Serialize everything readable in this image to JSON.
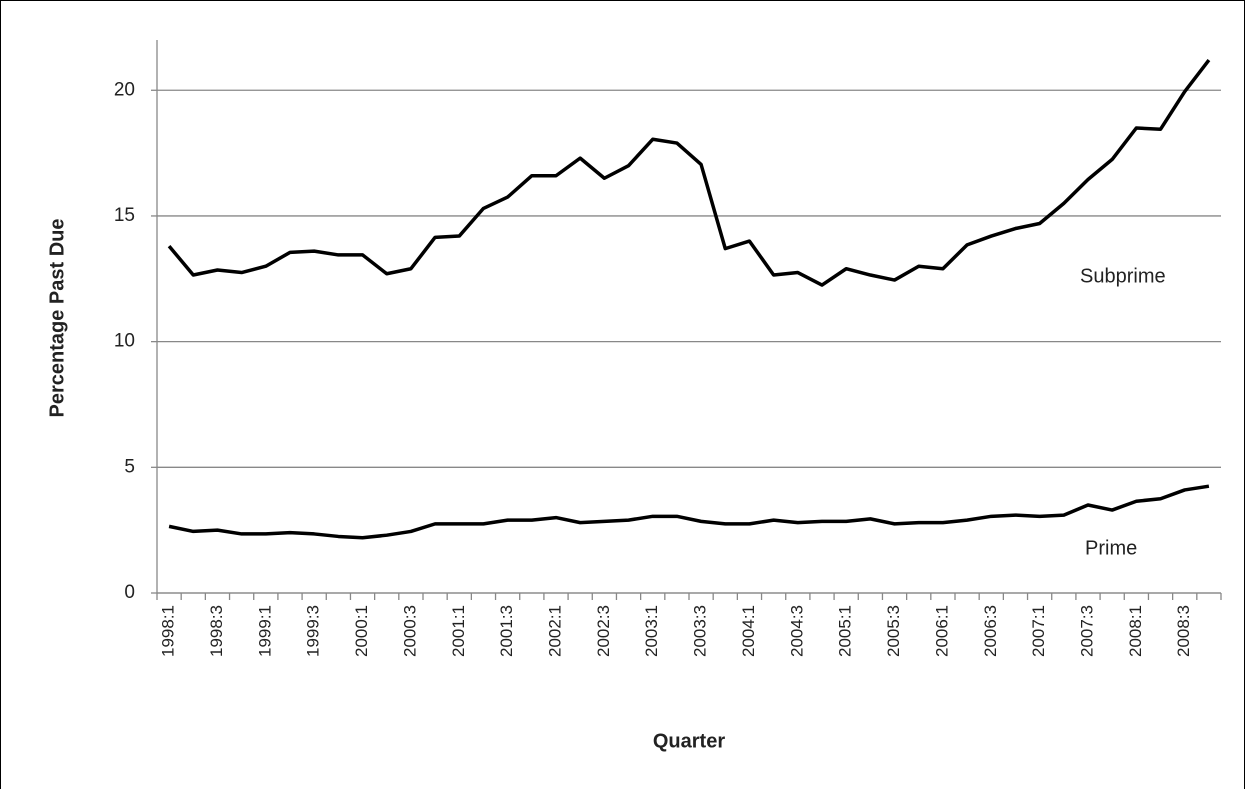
{
  "chart_data": {
    "type": "line",
    "x_label": "Quarter",
    "y_label": "Percentage Past Due",
    "categories": [
      "1998:1",
      null,
      "1998:3",
      null,
      "1999:1",
      null,
      "1999:3",
      null,
      "2000:1",
      null,
      "2000:3",
      null,
      "2001:1",
      null,
      "2001:3",
      null,
      "2002:1",
      null,
      "2002:3",
      null,
      "2003:1",
      null,
      "2003:3",
      null,
      "2004:1",
      null,
      "2004:3",
      null,
      "2005:1",
      null,
      "2005:3",
      null,
      "2006:1",
      null,
      "2006:3",
      null,
      "2007:1",
      null,
      "2007:3",
      null,
      "2008:1",
      null,
      "2008:3",
      null
    ],
    "series": [
      {
        "name": "Subprime",
        "color": "#000000",
        "values": [
          13.8,
          12.65,
          12.85,
          12.75,
          13.0,
          13.55,
          13.6,
          13.45,
          13.45,
          12.7,
          12.9,
          14.15,
          14.2,
          15.3,
          15.75,
          16.6,
          16.6,
          17.3,
          16.5,
          17.0,
          18.05,
          17.9,
          17.05,
          13.7,
          14.0,
          12.65,
          12.75,
          12.25,
          12.9,
          12.65,
          12.45,
          13.0,
          12.9,
          13.85,
          14.2,
          14.5,
          14.7,
          15.5,
          16.45,
          17.25,
          18.5,
          18.45,
          19.95,
          21.2
        ]
      },
      {
        "name": "Prime",
        "color": "#000000",
        "values": [
          2.65,
          2.45,
          2.5,
          2.35,
          2.35,
          2.4,
          2.35,
          2.25,
          2.2,
          2.3,
          2.45,
          2.75,
          2.75,
          2.75,
          2.9,
          2.9,
          3.0,
          2.8,
          2.85,
          2.9,
          3.05,
          3.05,
          2.85,
          2.75,
          2.75,
          2.9,
          2.8,
          2.85,
          2.85,
          2.95,
          2.75,
          2.8,
          2.8,
          2.9,
          3.05,
          3.1,
          3.05,
          3.1,
          3.5,
          3.3,
          3.65,
          3.75,
          4.1,
          4.25
        ]
      }
    ],
    "ylim": [
      0,
      22
    ],
    "yticks": [
      0,
      5,
      10,
      15,
      20
    ],
    "grid": true
  }
}
